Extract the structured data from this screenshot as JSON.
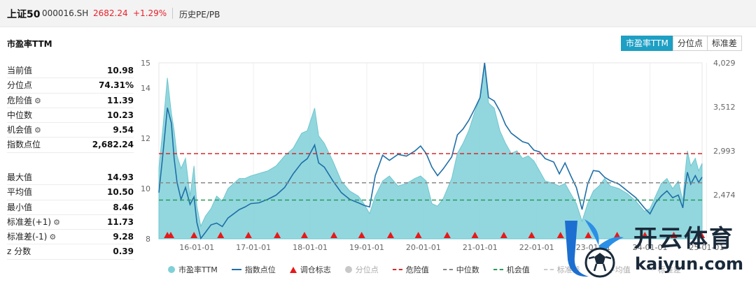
{
  "header": {
    "name": "上证50",
    "code": "000016.SH",
    "price": "2682.24",
    "change": "+1.29%",
    "subtitle": "历史PE/PB"
  },
  "section_title": "市盈率TTM",
  "tabs": [
    {
      "label": "市盈率TTM",
      "active": true
    },
    {
      "label": "分位点",
      "active": false
    },
    {
      "label": "标准差",
      "active": false
    }
  ],
  "stats_top": [
    {
      "label": "当前值",
      "value": "10.98",
      "gear": false
    },
    {
      "label": "分位点",
      "value": "74.31%",
      "gear": false
    },
    {
      "label": "危险值",
      "value": "11.39",
      "gear": true
    },
    {
      "label": "中位数",
      "value": "10.23",
      "gear": false
    },
    {
      "label": "机会值",
      "value": "9.54",
      "gear": true
    },
    {
      "label": "指数点位",
      "value": "2,682.24",
      "gear": false
    }
  ],
  "stats_bottom": [
    {
      "label": "最大值",
      "value": "14.93",
      "gear": false
    },
    {
      "label": "平均值",
      "value": "10.50",
      "gear": false
    },
    {
      "label": "最小值",
      "value": "8.46",
      "gear": false
    },
    {
      "label": "标准差(+1)",
      "value": "11.73",
      "gear": true
    },
    {
      "label": "标准差(-1)",
      "value": "9.28",
      "gear": true
    },
    {
      "label": "z 分数",
      "value": "0.39",
      "gear": false
    }
  ],
  "legend": [
    {
      "label": "市盈率TTM",
      "kind": "circle",
      "color": "#7fd0d8",
      "dim": false
    },
    {
      "label": "指数点位",
      "kind": "line",
      "color": "#1f6fa8",
      "dim": false
    },
    {
      "label": "调仓标志",
      "kind": "tri",
      "color": "#e61919",
      "dim": false
    },
    {
      "label": "分位点",
      "kind": "circle",
      "color": "#c8c8c8",
      "dim": true
    },
    {
      "label": "危险值",
      "kind": "dash",
      "color": "#d42a2a",
      "dim": false
    },
    {
      "label": "中位数",
      "kind": "dash",
      "color": "#888888",
      "dim": false
    },
    {
      "label": "机会值",
      "kind": "dash",
      "color": "#2a9a5a",
      "dim": false
    },
    {
      "label": "标准差",
      "kind": "dash",
      "color": "#cccccc",
      "dim": true
    },
    {
      "label": "平均值",
      "kind": "dash",
      "color": "#cccccc",
      "dim": true
    },
    {
      "label": "标准差",
      "kind": "dash",
      "color": "#cccccc",
      "dim": true
    }
  ],
  "watermark": {
    "cn": "开云体育",
    "en": "kaiyun.com"
  },
  "chart_data": {
    "type": "area",
    "title": "",
    "xlabel": "",
    "ylabel": "",
    "x_tick_labels": [
      "16-01-01",
      "17-01-01",
      "18-01-01",
      "19-01-01",
      "20-01-01",
      "21-01-01",
      "22-01-01",
      "23-01-01",
      "24-01-01",
      "25-01-01"
    ],
    "x_tick_years": [
      2016,
      2017,
      2018,
      2019,
      2020,
      2021,
      2022,
      2023,
      2024,
      2025
    ],
    "x_range": [
      2015.33,
      2024.92
    ],
    "y_left": {
      "range": [
        8,
        15
      ],
      "ticks": [
        8,
        10,
        12,
        14,
        15
      ]
    },
    "y_right": {
      "range": [
        1955,
        4029
      ],
      "ticks": [
        2474,
        2993,
        3512,
        4029
      ]
    },
    "reference_lines": [
      {
        "name": "危险值",
        "value": 11.39,
        "color": "#d42a2a"
      },
      {
        "name": "中位数",
        "value": 10.23,
        "color": "#888888"
      },
      {
        "name": "机会值",
        "value": 9.54,
        "color": "#2a9a5a"
      }
    ],
    "series": [
      {
        "name": "市盈率TTM",
        "axis": "left",
        "color": "#7fd0d8",
        "points": [
          [
            2015.33,
            10.8
          ],
          [
            2015.4,
            12.4
          ],
          [
            2015.48,
            14.4
          ],
          [
            2015.55,
            13.0
          ],
          [
            2015.6,
            12.3
          ],
          [
            2015.65,
            11.3
          ],
          [
            2015.72,
            10.8
          ],
          [
            2015.8,
            11.2
          ],
          [
            2015.88,
            9.7
          ],
          [
            2015.95,
            10.9
          ],
          [
            2016.0,
            9.3
          ],
          [
            2016.07,
            8.5
          ],
          [
            2016.15,
            8.9
          ],
          [
            2016.25,
            9.2
          ],
          [
            2016.35,
            9.7
          ],
          [
            2016.45,
            9.5
          ],
          [
            2016.55,
            10.0
          ],
          [
            2016.65,
            10.2
          ],
          [
            2016.75,
            10.4
          ],
          [
            2016.85,
            10.4
          ],
          [
            2016.95,
            10.5
          ],
          [
            2017.1,
            10.6
          ],
          [
            2017.25,
            10.7
          ],
          [
            2017.4,
            10.9
          ],
          [
            2017.55,
            11.3
          ],
          [
            2017.7,
            11.6
          ],
          [
            2017.85,
            12.2
          ],
          [
            2017.95,
            12.3
          ],
          [
            2018.08,
            13.2
          ],
          [
            2018.15,
            12.1
          ],
          [
            2018.25,
            11.8
          ],
          [
            2018.4,
            11.1
          ],
          [
            2018.55,
            10.3
          ],
          [
            2018.7,
            9.9
          ],
          [
            2018.85,
            9.7
          ],
          [
            2018.95,
            9.4
          ],
          [
            2019.05,
            9.0
          ],
          [
            2019.15,
            9.7
          ],
          [
            2019.28,
            10.3
          ],
          [
            2019.4,
            10.5
          ],
          [
            2019.55,
            10.1
          ],
          [
            2019.7,
            10.2
          ],
          [
            2019.85,
            10.4
          ],
          [
            2019.95,
            10.5
          ],
          [
            2020.05,
            10.3
          ],
          [
            2020.15,
            9.4
          ],
          [
            2020.25,
            9.3
          ],
          [
            2020.35,
            9.6
          ],
          [
            2020.5,
            10.4
          ],
          [
            2020.6,
            11.4
          ],
          [
            2020.7,
            11.8
          ],
          [
            2020.8,
            12.3
          ],
          [
            2020.9,
            13.0
          ],
          [
            2021.0,
            13.6
          ],
          [
            2021.08,
            14.9
          ],
          [
            2021.15,
            13.4
          ],
          [
            2021.25,
            13.2
          ],
          [
            2021.35,
            12.3
          ],
          [
            2021.45,
            11.8
          ],
          [
            2021.55,
            11.4
          ],
          [
            2021.65,
            11.5
          ],
          [
            2021.75,
            11.2
          ],
          [
            2021.85,
            11.3
          ],
          [
            2021.95,
            11.1
          ],
          [
            2022.05,
            10.7
          ],
          [
            2022.15,
            10.3
          ],
          [
            2022.3,
            10.2
          ],
          [
            2022.4,
            10.1
          ],
          [
            2022.5,
            10.2
          ],
          [
            2022.6,
            9.8
          ],
          [
            2022.7,
            9.4
          ],
          [
            2022.8,
            8.7
          ],
          [
            2022.9,
            9.4
          ],
          [
            2023.0,
            9.9
          ],
          [
            2023.1,
            10.1
          ],
          [
            2023.2,
            10.4
          ],
          [
            2023.3,
            10.1
          ],
          [
            2023.45,
            10.0
          ],
          [
            2023.6,
            9.8
          ],
          [
            2023.75,
            9.5
          ],
          [
            2023.9,
            9.1
          ],
          [
            2024.0,
            9.2
          ],
          [
            2024.1,
            9.7
          ],
          [
            2024.2,
            10.2
          ],
          [
            2024.3,
            10.4
          ],
          [
            2024.4,
            10.0
          ],
          [
            2024.5,
            10.3
          ],
          [
            2024.58,
            9.5
          ],
          [
            2024.62,
            10.6
          ],
          [
            2024.66,
            11.5
          ],
          [
            2024.72,
            10.9
          ],
          [
            2024.8,
            11.2
          ],
          [
            2024.86,
            10.7
          ],
          [
            2024.92,
            11.0
          ]
        ]
      },
      {
        "name": "指数点位",
        "axis": "right",
        "color": "#1f6fa8",
        "points": [
          [
            2015.33,
            2500
          ],
          [
            2015.4,
            2950
          ],
          [
            2015.48,
            3500
          ],
          [
            2015.55,
            3320
          ],
          [
            2015.6,
            2900
          ],
          [
            2015.65,
            2620
          ],
          [
            2015.72,
            2420
          ],
          [
            2015.8,
            2560
          ],
          [
            2015.88,
            2360
          ],
          [
            2015.95,
            2450
          ],
          [
            2016.0,
            2150
          ],
          [
            2016.07,
            1960
          ],
          [
            2016.15,
            2030
          ],
          [
            2016.25,
            2120
          ],
          [
            2016.35,
            2140
          ],
          [
            2016.45,
            2100
          ],
          [
            2016.55,
            2200
          ],
          [
            2016.65,
            2250
          ],
          [
            2016.75,
            2300
          ],
          [
            2016.85,
            2330
          ],
          [
            2016.95,
            2370
          ],
          [
            2017.1,
            2380
          ],
          [
            2017.25,
            2420
          ],
          [
            2017.4,
            2470
          ],
          [
            2017.55,
            2560
          ],
          [
            2017.7,
            2720
          ],
          [
            2017.85,
            2850
          ],
          [
            2017.95,
            2900
          ],
          [
            2018.08,
            3060
          ],
          [
            2018.15,
            2850
          ],
          [
            2018.25,
            2800
          ],
          [
            2018.4,
            2640
          ],
          [
            2018.55,
            2500
          ],
          [
            2018.7,
            2420
          ],
          [
            2018.85,
            2380
          ],
          [
            2018.95,
            2350
          ],
          [
            2019.05,
            2330
          ],
          [
            2019.15,
            2700
          ],
          [
            2019.28,
            2940
          ],
          [
            2019.4,
            2880
          ],
          [
            2019.55,
            2950
          ],
          [
            2019.7,
            2930
          ],
          [
            2019.85,
            2990
          ],
          [
            2019.95,
            3050
          ],
          [
            2020.05,
            2960
          ],
          [
            2020.15,
            2800
          ],
          [
            2020.25,
            2700
          ],
          [
            2020.35,
            2780
          ],
          [
            2020.5,
            2920
          ],
          [
            2020.6,
            3180
          ],
          [
            2020.7,
            3250
          ],
          [
            2020.8,
            3350
          ],
          [
            2020.9,
            3480
          ],
          [
            2021.0,
            3620
          ],
          [
            2021.08,
            4029
          ],
          [
            2021.15,
            3620
          ],
          [
            2021.25,
            3580
          ],
          [
            2021.35,
            3460
          ],
          [
            2021.45,
            3300
          ],
          [
            2021.55,
            3200
          ],
          [
            2021.65,
            3150
          ],
          [
            2021.75,
            3100
          ],
          [
            2021.85,
            3080
          ],
          [
            2021.95,
            3000
          ],
          [
            2022.05,
            2980
          ],
          [
            2022.15,
            2900
          ],
          [
            2022.3,
            2860
          ],
          [
            2022.4,
            2720
          ],
          [
            2022.5,
            2850
          ],
          [
            2022.6,
            2700
          ],
          [
            2022.7,
            2560
          ],
          [
            2022.8,
            2300
          ],
          [
            2022.9,
            2600
          ],
          [
            2023.0,
            2760
          ],
          [
            2023.1,
            2750
          ],
          [
            2023.2,
            2680
          ],
          [
            2023.3,
            2640
          ],
          [
            2023.45,
            2600
          ],
          [
            2023.6,
            2520
          ],
          [
            2023.75,
            2440
          ],
          [
            2023.9,
            2320
          ],
          [
            2024.0,
            2250
          ],
          [
            2024.1,
            2380
          ],
          [
            2024.2,
            2460
          ],
          [
            2024.3,
            2520
          ],
          [
            2024.4,
            2440
          ],
          [
            2024.5,
            2470
          ],
          [
            2024.58,
            2320
          ],
          [
            2024.62,
            2560
          ],
          [
            2024.66,
            2740
          ],
          [
            2024.72,
            2600
          ],
          [
            2024.8,
            2700
          ],
          [
            2024.86,
            2620
          ],
          [
            2024.92,
            2682
          ]
        ]
      }
    ],
    "markers": {
      "name": "调仓标志",
      "color": "#e61919",
      "x": [
        2015.48,
        2015.54,
        2015.95,
        2016.42,
        2016.91,
        2017.42,
        2017.9,
        2018.42,
        2018.91,
        2019.42,
        2019.91,
        2020.42,
        2020.91,
        2021.42,
        2021.91,
        2022.42,
        2022.91,
        2023.42,
        2023.91,
        2024.42,
        2024.91
      ]
    }
  }
}
